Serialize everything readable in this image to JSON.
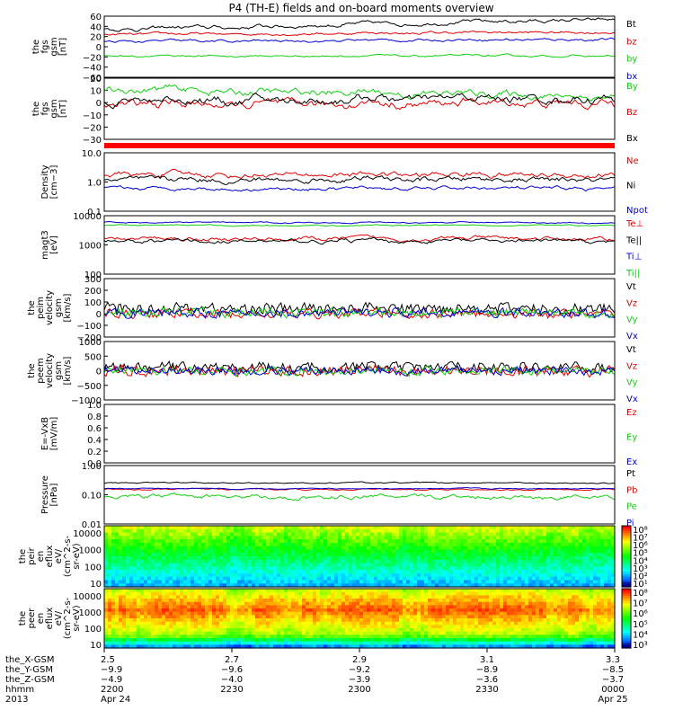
{
  "title": "P4 (TH-E) fields and on-board moments overview",
  "colors": {
    "black": "#000000",
    "red": "#e00000",
    "green": "#10d010",
    "blue": "#0000d0"
  },
  "chart_data": [
    {
      "type": "line",
      "id": "fgs_gsm",
      "ylabel": [
        "the",
        "fgs",
        "gsm",
        "[nT]"
      ],
      "yticks": [
        "60",
        "40",
        "20",
        "0",
        "−20",
        "−40",
        "−60"
      ],
      "ylim": [
        -60,
        60
      ],
      "series": [
        {
          "name": "Bt",
          "color": "#000000",
          "base": 34,
          "trend": 20,
          "amp": 6
        },
        {
          "name": "bz",
          "color": "#e00000",
          "base": 24,
          "trend": 5,
          "amp": 4
        },
        {
          "name": "by",
          "color": "#10d010",
          "base": -18,
          "trend": 0,
          "amp": 3
        },
        {
          "name": "bx",
          "color": "#0000d0",
          "base": 10,
          "trend": 5,
          "amp": 4
        }
      ]
    },
    {
      "type": "line",
      "id": "fgs_gsm_zoom",
      "ylabel": [
        "the",
        "fgs",
        "gsm",
        "[nT]"
      ],
      "yticks": [
        "20",
        "10",
        "0",
        "−10",
        "−20",
        "−30"
      ],
      "ylim": [
        -35,
        20
      ],
      "series": [
        {
          "name": "By",
          "color": "#10d010",
          "base": 10,
          "trend": -6,
          "amp": 5
        },
        {
          "name": "Bz",
          "color": "#e00000",
          "base": -4,
          "trend": 2,
          "amp": 6
        },
        {
          "name": "Bx",
          "color": "#000000",
          "base": 0,
          "trend": 2,
          "amp": 6
        }
      ]
    },
    {
      "type": "bar",
      "id": "mode_bar",
      "color": "#ff0000"
    },
    {
      "type": "line",
      "id": "density",
      "log": true,
      "ylabel": [
        "Density",
        "[cm−3]"
      ],
      "yticks": [
        "10.0",
        "1.0",
        "0.1"
      ],
      "ylim": [
        0.1,
        10
      ],
      "series": [
        {
          "name": "Ne",
          "color": "#e00000",
          "base": 1.8,
          "amp": 0.3
        },
        {
          "name": "Ni",
          "color": "#000000",
          "base": 1.2,
          "amp": 0.3
        },
        {
          "name": "Npot",
          "color": "#0000d0",
          "base": 0.6,
          "amp": 0.2
        }
      ]
    },
    {
      "type": "line",
      "id": "temperature",
      "log": true,
      "ylabel": [
        "magt3",
        "[eV]"
      ],
      "yticks": [
        "10000",
        "1000",
        "100"
      ],
      "ylim": [
        60,
        12000
      ],
      "series": [
        {
          "name": "Te⊥",
          "color": "#e00000",
          "base": 1500,
          "amp": 0.25
        },
        {
          "name": "Te||",
          "color": "#000000",
          "base": 1200,
          "amp": 0.25
        },
        {
          "name": "Ti⊥",
          "color": "#0000d0",
          "base": 6500,
          "amp": 0.08
        },
        {
          "name": "Ti||",
          "color": "#10d010",
          "base": 5000,
          "amp": 0.08
        }
      ]
    },
    {
      "type": "line",
      "id": "peim_velocity",
      "ylabel": [
        "the",
        "peim",
        "velocity",
        "gsm",
        "[km/s]"
      ],
      "yticks": [
        "300",
        "200",
        "100",
        "0",
        "−100",
        "−200"
      ],
      "ylim": [
        -200,
        300
      ],
      "series": [
        {
          "name": "Vt",
          "color": "#000000",
          "base": 45,
          "amp": 30
        },
        {
          "name": "Vz",
          "color": "#e00000",
          "base": 0,
          "amp": 25
        },
        {
          "name": "Vy",
          "color": "#10d010",
          "base": 10,
          "amp": 25
        },
        {
          "name": "Vx",
          "color": "#0000d0",
          "base": 5,
          "amp": 25
        }
      ]
    },
    {
      "type": "line",
      "id": "peem_velocity",
      "ylabel": [
        "the",
        "peem",
        "velocity",
        "gsm",
        "[km/s]"
      ],
      "yticks": [
        "1000",
        "500",
        "0",
        "−500",
        "−1000"
      ],
      "ylim": [
        -1000,
        1000
      ],
      "series": [
        {
          "name": "Vt",
          "color": "#000000",
          "base": 120,
          "amp": 110
        },
        {
          "name": "Vz",
          "color": "#e00000",
          "base": 0,
          "amp": 110
        },
        {
          "name": "Vy",
          "color": "#10d010",
          "base": 0,
          "amp": 90
        },
        {
          "name": "Vx",
          "color": "#0000d0",
          "base": 0,
          "amp": 90
        }
      ]
    },
    {
      "type": "line",
      "id": "efield",
      "ylabel": [
        "E=-VxB",
        "[mV/m]"
      ],
      "yticks": [
        "1.0",
        "0.8",
        "0.6",
        "0.4",
        "0.2",
        "0.0"
      ],
      "ylim": [
        0,
        1
      ],
      "series": [
        {
          "name": "Ez",
          "color": "#e00000"
        },
        {
          "name": "Ey",
          "color": "#10d010"
        },
        {
          "name": "Ex",
          "color": "#0000d0"
        }
      ]
    },
    {
      "type": "line",
      "id": "pressure",
      "log": true,
      "ylabel": [
        "Pressure",
        "[nPa]"
      ],
      "yticks": [
        "1.00",
        "0.10",
        "0.01"
      ],
      "ylim": [
        0.01,
        10
      ],
      "series": [
        {
          "name": "Pt",
          "color": "#000000",
          "base": 1.3,
          "amp": 0.1
        },
        {
          "name": "Pb",
          "color": "#e00000",
          "base": 0.6,
          "amp": 0.12
        },
        {
          "name": "Pe",
          "color": "#10d010",
          "base": 0.25,
          "amp": 0.35
        },
        {
          "name": "Pi",
          "color": "#0000d0",
          "base": 0.65,
          "amp": 0.08
        }
      ]
    },
    {
      "type": "heatmap",
      "id": "peir_spectrogram",
      "ylabel": [
        "the",
        "peir",
        "en",
        "eflux",
        "eV/",
        "(cm^2-s-",
        "sr-eV)"
      ],
      "yticks": [
        "10000",
        "1000",
        "100",
        "10"
      ],
      "colorbar_ticks": [
        "10⁸",
        "10⁷",
        "10⁶",
        "10⁵",
        "10⁴",
        "10³",
        "10²",
        "10¹"
      ]
    },
    {
      "type": "heatmap",
      "id": "peer_spectrogram",
      "ylabel": [
        "the",
        "peer",
        "en",
        "eflux",
        "eV/",
        "(cm^2-s-",
        "sr-eV)"
      ],
      "yticks": [
        "10000",
        "1000",
        "100",
        "10"
      ],
      "colorbar_ticks": [
        "10⁸",
        "10⁷",
        "10⁶",
        "10⁵",
        "10⁴",
        "10³"
      ]
    }
  ],
  "ephemeris": {
    "labels": [
      "the_X-GSM",
      "the_Y-GSM",
      "the_Z-GSM",
      "hhmm",
      "2013"
    ],
    "columns": [
      {
        "x": "2.5",
        "y": "−9.9",
        "z": "−4.9",
        "time": "2200",
        "date": "Apr 24"
      },
      {
        "x": "2.7",
        "y": "−9.6",
        "z": "−4.0",
        "time": "2230",
        "date": ""
      },
      {
        "x": "2.9",
        "y": "−9.2",
        "z": "−3.9",
        "time": "2300",
        "date": ""
      },
      {
        "x": "3.1",
        "y": "−8.9",
        "z": "−3.6",
        "time": "2330",
        "date": ""
      },
      {
        "x": "3.3",
        "y": "−8.5",
        "z": "−3.7",
        "time": "0000",
        "date": "Apr 25"
      }
    ]
  }
}
